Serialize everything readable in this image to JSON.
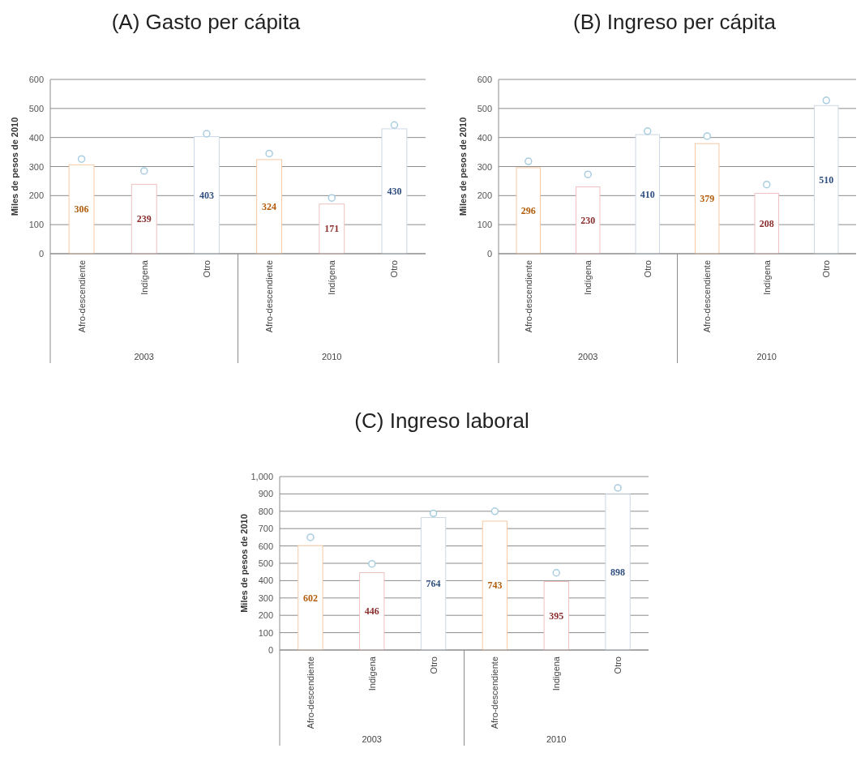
{
  "chart_data": [
    {
      "type": "bar",
      "title": "(A) Gasto per cápita",
      "ylabel": "Miles de pesos de 2010",
      "categories": [
        "Afro-descendiente",
        "Indígena",
        "Otro",
        "Afro-descendiente",
        "Indígena",
        "Otro"
      ],
      "series": [
        {
          "colors": [
            "#ffffff",
            "#ffffff",
            "#ffffff",
            "#ffffff",
            "#ffffff",
            "#ffffff"
          ],
          "values": [
            306,
            239,
            403,
            324,
            171,
            430
          ],
          "value_labels": [
            "306",
            "239",
            "403",
            "324",
            "171",
            "430"
          ]
        },
        {
          "type": "scatter",
          "color": "#a8cce0",
          "values": [
            326,
            285,
            413,
            345,
            192,
            443
          ]
        }
      ],
      "ylim": [
        0,
        600
      ],
      "yticks": [
        0,
        100,
        200,
        300,
        400,
        500,
        600
      ],
      "grid": "y",
      "marker": "circle",
      "annotations": [
        "2003",
        "2010"
      ]
    },
    {
      "type": "bar",
      "title": "(B) Ingreso per cápita",
      "ylabel": "Miles de pesos de 2010",
      "categories": [
        "Afro-descendiente",
        "Indígena",
        "Otro",
        "Afro-descendiente",
        "Indígena",
        "Otro"
      ],
      "series": [
        {
          "colors": [
            "#ffffff",
            "#ffffff",
            "#ffffff",
            "#ffffff",
            "#ffffff",
            "#ffffff"
          ],
          "values": [
            296,
            230,
            410,
            379,
            208,
            510
          ],
          "value_labels": [
            "296",
            "230",
            "410",
            "379",
            "208",
            "510"
          ]
        },
        {
          "type": "scatter",
          "color": "#a8cce0",
          "values": [
            318,
            273,
            422,
            405,
            238,
            528
          ]
        }
      ],
      "ylim": [
        0,
        600
      ],
      "yticks": [
        0,
        100,
        200,
        300,
        400,
        500,
        600
      ],
      "grid": "y",
      "marker": "circle",
      "annotations": [
        "2003",
        "2010"
      ]
    },
    {
      "type": "bar",
      "title": "(C) Ingreso laboral",
      "ylabel": "Miles de pesos de 2010",
      "categories": [
        "Afro-descendiente",
        "Indigena",
        "Otro",
        "Afro-descendiente",
        "Indigena",
        "Otro"
      ],
      "series": [
        {
          "colors": [
            "#ffffff",
            "#ffffff",
            "#ffffff",
            "#ffffff",
            "#ffffff",
            "#ffffff"
          ],
          "values": [
            602,
            446,
            764,
            743,
            395,
            898
          ],
          "value_labels": [
            "602",
            "446",
            "764",
            "743",
            "395",
            "898"
          ]
        },
        {
          "type": "scatter",
          "color": "#a8cce0",
          "values": [
            650,
            497,
            788,
            800,
            445,
            935
          ]
        }
      ],
      "ylim": [
        0,
        1000
      ],
      "yticks": [
        0,
        100,
        200,
        300,
        400,
        500,
        600,
        700,
        800,
        900,
        {
          "value": 1000,
          "label": "1,000"
        }
      ],
      "grid": "y",
      "marker": "circle",
      "annotations": [
        "2003",
        "2010"
      ]
    }
  ]
}
